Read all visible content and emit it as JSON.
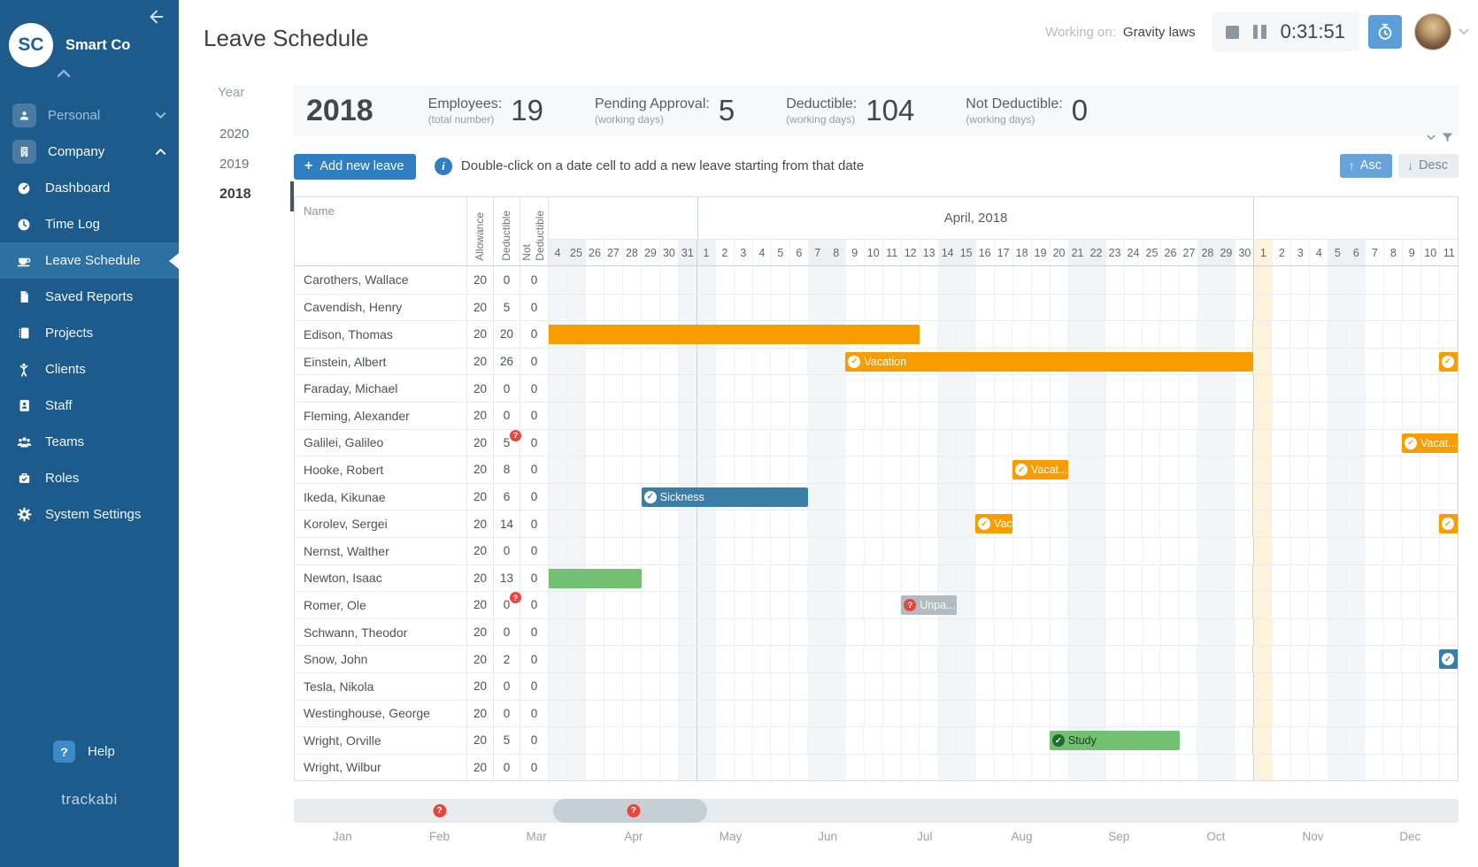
{
  "sidebar": {
    "company_initials": "SC",
    "company_name": "Smart Co",
    "groups": [
      {
        "label": "Personal",
        "icon": "person-icon",
        "chevron": "down",
        "muted": true
      },
      {
        "label": "Company",
        "icon": "building-icon",
        "chevron": "up",
        "muted": false
      }
    ],
    "items": [
      {
        "label": "Dashboard",
        "icon": "dashboard-icon",
        "active": false
      },
      {
        "label": "Time Log",
        "icon": "clock-icon",
        "active": false
      },
      {
        "label": "Leave Schedule",
        "icon": "leave-icon",
        "active": true
      },
      {
        "label": "Saved Reports",
        "icon": "report-icon",
        "active": false
      },
      {
        "label": "Projects",
        "icon": "projects-icon",
        "active": false
      },
      {
        "label": "Clients",
        "icon": "clients-icon",
        "active": false
      },
      {
        "label": "Staff",
        "icon": "staff-icon",
        "active": false
      },
      {
        "label": "Teams",
        "icon": "teams-icon",
        "active": false
      },
      {
        "label": "Roles",
        "icon": "roles-icon",
        "active": false
      },
      {
        "label": "System Settings",
        "icon": "gear-icon",
        "active": false
      }
    ],
    "help_label": "Help",
    "logo_text": "trackabi"
  },
  "header": {
    "page_title": "Leave Schedule",
    "working_on_label": "Working on:",
    "working_on_value": "Gravity laws",
    "timer_value": "0:31:51"
  },
  "year_panel": {
    "title": "Year",
    "items": [
      "2020",
      "2019",
      "2018"
    ],
    "active": "2018"
  },
  "stats": {
    "year": "2018",
    "items": [
      {
        "label": "Employees:",
        "sub": "(total number)",
        "value": "19"
      },
      {
        "label": "Pending Approval:",
        "sub": "(working days)",
        "value": "5"
      },
      {
        "label": "Deductible:",
        "sub": "(working days)",
        "value": "104"
      },
      {
        "label": "Not Deductible:",
        "sub": "(working days)",
        "value": "0"
      }
    ]
  },
  "toolbar": {
    "add_button": "Add new leave",
    "hint": "Double-click on a date cell to add a new leave starting from that date",
    "asc": "Asc",
    "desc": "Desc"
  },
  "schedule": {
    "name_header": "Name",
    "value_headers": [
      "Allowance",
      "Deductible",
      "Not Deductible"
    ],
    "month_sections": [
      {
        "label": "",
        "cols": 8
      },
      {
        "label": "April, 2018",
        "cols": 30
      },
      {
        "label": "",
        "cols": 11
      }
    ],
    "date_labels": [
      "4",
      "25",
      "26",
      "27",
      "28",
      "29",
      "30",
      "31",
      "1",
      "2",
      "3",
      "4",
      "5",
      "6",
      "7",
      "8",
      "9",
      "10",
      "11",
      "12",
      "13",
      "14",
      "15",
      "16",
      "17",
      "18",
      "19",
      "20",
      "21",
      "22",
      "23",
      "24",
      "25",
      "26",
      "27",
      "28",
      "29",
      "30",
      "1",
      "2",
      "3",
      "4",
      "5",
      "6",
      "7",
      "8",
      "9",
      "10",
      "11"
    ],
    "weekend_cols": [
      0,
      1,
      7,
      8,
      14,
      15,
      21,
      22,
      28,
      29,
      35,
      36,
      42,
      43
    ],
    "holiday_cols": [
      38
    ],
    "rows": [
      {
        "name": "Carothers, Wallace",
        "allowance": "20",
        "deductible": "0",
        "not_deductible": "0",
        "deductible_badge": false
      },
      {
        "name": "Cavendish, Henry",
        "allowance": "20",
        "deductible": "5",
        "not_deductible": "0",
        "deductible_badge": false
      },
      {
        "name": "Edison, Thomas",
        "allowance": "20",
        "deductible": "20",
        "not_deductible": "0",
        "deductible_badge": false
      },
      {
        "name": "Einstein, Albert",
        "allowance": "20",
        "deductible": "26",
        "not_deductible": "0",
        "deductible_badge": false
      },
      {
        "name": "Faraday, Michael",
        "allowance": "20",
        "deductible": "0",
        "not_deductible": "0",
        "deductible_badge": false
      },
      {
        "name": "Fleming, Alexander",
        "allowance": "20",
        "deductible": "0",
        "not_deductible": "0",
        "deductible_badge": false
      },
      {
        "name": "Galilei, Galileo",
        "allowance": "20",
        "deductible": "5",
        "not_deductible": "0",
        "deductible_badge": true
      },
      {
        "name": "Hooke, Robert",
        "allowance": "20",
        "deductible": "8",
        "not_deductible": "0",
        "deductible_badge": false
      },
      {
        "name": "Ikeda, Kikunae",
        "allowance": "20",
        "deductible": "6",
        "not_deductible": "0",
        "deductible_badge": false
      },
      {
        "name": "Korolev, Sergei",
        "allowance": "20",
        "deductible": "14",
        "not_deductible": "0",
        "deductible_badge": false
      },
      {
        "name": "Nernst, Walther",
        "allowance": "20",
        "deductible": "0",
        "not_deductible": "0",
        "deductible_badge": false
      },
      {
        "name": "Newton, Isaac",
        "allowance": "20",
        "deductible": "13",
        "not_deductible": "0",
        "deductible_badge": false
      },
      {
        "name": "Romer, Ole",
        "allowance": "20",
        "deductible": "0",
        "not_deductible": "0",
        "deductible_badge": true
      },
      {
        "name": "Schwann, Theodor",
        "allowance": "20",
        "deductible": "0",
        "not_deductible": "0",
        "deductible_badge": false
      },
      {
        "name": "Snow, John",
        "allowance": "20",
        "deductible": "2",
        "not_deductible": "0",
        "deductible_badge": false
      },
      {
        "name": "Tesla, Nikola",
        "allowance": "20",
        "deductible": "0",
        "not_deductible": "0",
        "deductible_badge": false
      },
      {
        "name": "Westinghouse, George",
        "allowance": "20",
        "deductible": "0",
        "not_deductible": "0",
        "deductible_badge": false
      },
      {
        "name": "Wright, Orville",
        "allowance": "20",
        "deductible": "5",
        "not_deductible": "0",
        "deductible_badge": false
      },
      {
        "name": "Wright, Wilbur",
        "allowance": "20",
        "deductible": "0",
        "not_deductible": "0",
        "deductible_badge": false
      }
    ],
    "bars": [
      {
        "row": 2,
        "start": 0,
        "span": 20,
        "type": "vacation",
        "label": "",
        "icon": null,
        "trunc_left": true,
        "trunc_right": false
      },
      {
        "row": 3,
        "start": 16,
        "span": 22,
        "type": "vacation",
        "label": "Vacation",
        "icon": "check",
        "trunc_left": false,
        "trunc_right": false
      },
      {
        "row": 3,
        "start": 48,
        "span": 1,
        "type": "vacation",
        "label": "",
        "icon": "check",
        "trunc_left": false,
        "trunc_right": true
      },
      {
        "row": 6,
        "start": 46,
        "span": 3,
        "type": "vacation",
        "label": "Vacat...",
        "icon": "check",
        "trunc_left": false,
        "trunc_right": true
      },
      {
        "row": 7,
        "start": 25,
        "span": 3,
        "type": "vacation",
        "label": "Vacat...",
        "icon": "check",
        "trunc_left": false,
        "trunc_right": false
      },
      {
        "row": 8,
        "start": 5,
        "span": 9,
        "type": "sickness",
        "label": "Sickness",
        "icon": "check",
        "trunc_left": false,
        "trunc_right": false
      },
      {
        "row": 9,
        "start": 23,
        "span": 2,
        "type": "vacation",
        "label": "Vac",
        "icon": "check",
        "trunc_left": false,
        "trunc_right": false
      },
      {
        "row": 9,
        "start": 48,
        "span": 1,
        "type": "vacation",
        "label": "",
        "icon": "check",
        "trunc_left": false,
        "trunc_right": true
      },
      {
        "row": 11,
        "start": 0,
        "span": 5,
        "type": "study",
        "label": "",
        "icon": null,
        "trunc_left": true,
        "trunc_right": false
      },
      {
        "row": 12,
        "start": 19,
        "span": 3,
        "type": "unpaid",
        "label": "Unpa...",
        "icon": "question",
        "trunc_left": false,
        "trunc_right": false
      },
      {
        "row": 14,
        "start": 48,
        "span": 1,
        "type": "sickness",
        "label": "",
        "icon": "check",
        "trunc_left": false,
        "trunc_right": true
      },
      {
        "row": 17,
        "start": 27,
        "span": 7,
        "type": "study",
        "label": "Study",
        "icon": "check-dark",
        "trunc_left": false,
        "trunc_right": false
      }
    ]
  },
  "footer": {
    "months": [
      "Jan",
      "Feb",
      "Mar",
      "Apr",
      "May",
      "Jun",
      "Jul",
      "Aug",
      "Sep",
      "Oct",
      "Nov",
      "Dec"
    ],
    "badge_months": [
      "Feb",
      "Apr"
    ],
    "scroll_thumb": {
      "left_pct": 22.3,
      "width_pct": 13.2
    }
  },
  "colors": {
    "sidebar": "#1d5b8c",
    "accent": "#2e7ec1",
    "vacation": "#f89d00",
    "sickness": "#3a7da7",
    "study": "#73c073",
    "unpaid": "#b3bbc2",
    "badge": "#e8453d",
    "holiday": "#fcf3da"
  }
}
